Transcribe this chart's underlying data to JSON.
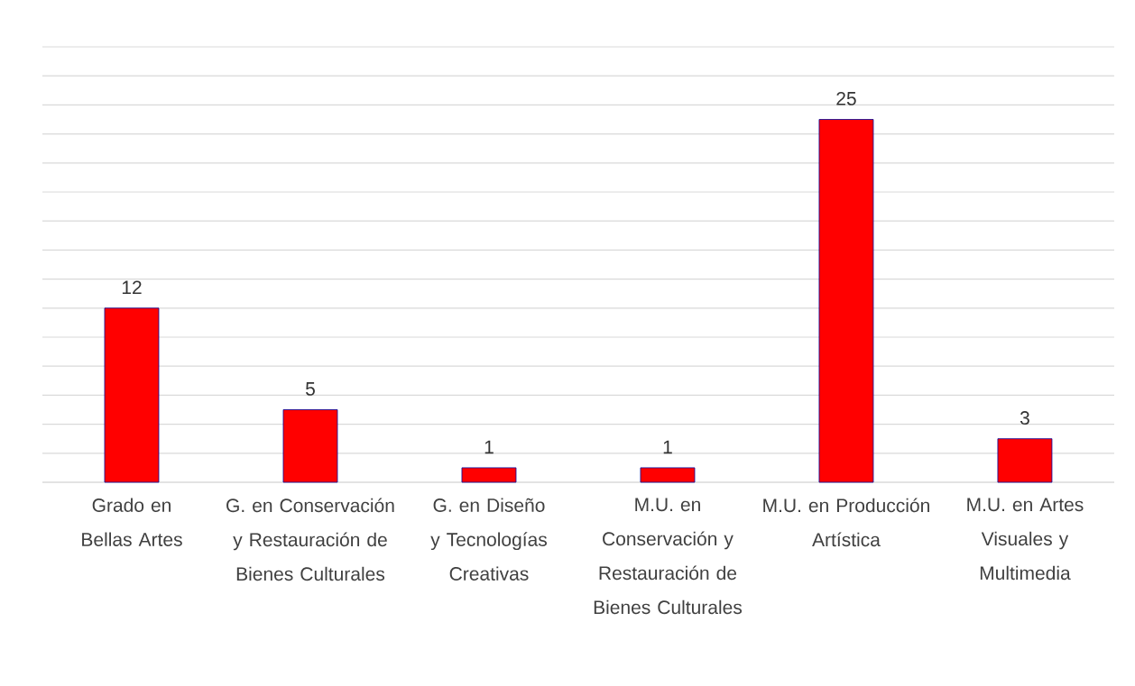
{
  "chart_data": {
    "type": "bar",
    "categories": [
      "Grado en Bellas Artes",
      "G. en Conservación y Restauración de Bienes Culturales",
      "G. en Diseño y Tecnologías Creativas",
      "M.U. en Conservación y Restauración de Bienes Culturales",
      "M.U. en Producción Artística",
      "M.U. en Artes Visuales y Multimedia"
    ],
    "values": [
      12,
      5,
      1,
      1,
      25,
      3
    ],
    "color": "#ff0000",
    "grid": "y",
    "tick_labels": "x",
    "data_labels": true
  }
}
